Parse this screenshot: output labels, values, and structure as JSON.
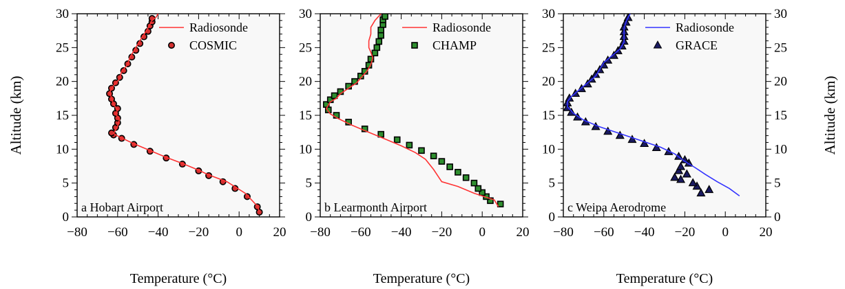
{
  "chart_data": [
    {
      "type": "line",
      "panel_label": "a Hobart Airport",
      "xlabel": "Temperature (°C)",
      "ylabel": "Altitude (km)",
      "xlim": [
        -80,
        20
      ],
      "ylim": [
        0,
        30
      ],
      "x_ticks": [
        -80,
        -60,
        -40,
        -20,
        0,
        20
      ],
      "y_ticks": [
        0,
        5,
        10,
        15,
        20,
        25,
        30
      ],
      "grid": false,
      "legend_position": "top-right",
      "series": [
        {
          "name": "Radiosonde",
          "style": "line",
          "color": "#ff3333",
          "points": [
            [
              10,
              0.8
            ],
            [
              9,
              1.6
            ],
            [
              3,
              3.5
            ],
            [
              -6,
              5.2
            ],
            [
              -15,
              6.2
            ],
            [
              -20,
              6.9
            ],
            [
              -28,
              7.9
            ],
            [
              -36,
              8.8
            ],
            [
              -44,
              9.8
            ],
            [
              -52,
              10.8
            ],
            [
              -59,
              11.8
            ],
            [
              -62,
              12.3
            ],
            [
              -60,
              13.4
            ],
            [
              -59,
              14.4
            ],
            [
              -61,
              15.2
            ],
            [
              -60,
              15.8
            ],
            [
              -62,
              16.6
            ],
            [
              -63,
              17.6
            ],
            [
              -64,
              18.4
            ],
            [
              -62,
              19.4
            ],
            [
              -59,
              20.4
            ],
            [
              -58,
              21.5
            ],
            [
              -55,
              22.5
            ],
            [
              -54,
              23.5
            ],
            [
              -52,
              24.5
            ],
            [
              -50,
              25.5
            ],
            [
              -48,
              26.5
            ],
            [
              -46,
              27.4
            ],
            [
              -44,
              28.4
            ],
            [
              -43,
              29.0
            ],
            [
              -41,
              29.5
            ],
            [
              -40,
              30.0
            ]
          ]
        },
        {
          "name": "COSMIC",
          "style": "markers",
          "marker": "circle",
          "marker_fill": "#d43030",
          "marker_edge": "#000000",
          "points": [
            [
              10,
              0.7
            ],
            [
              9,
              1.5
            ],
            [
              4,
              3.0
            ],
            [
              -2,
              4.2
            ],
            [
              -8,
              5.2
            ],
            [
              -15,
              6.1
            ],
            [
              -20,
              6.8
            ],
            [
              -28,
              7.8
            ],
            [
              -36,
              8.7
            ],
            [
              -44,
              9.7
            ],
            [
              -52,
              10.7
            ],
            [
              -58,
              11.6
            ],
            [
              -62,
              12.1
            ],
            [
              -63,
              12.4
            ],
            [
              -61,
              13.2
            ],
            [
              -60,
              13.9
            ],
            [
              -60,
              14.6
            ],
            [
              -61,
              15.3
            ],
            [
              -60,
              16.0
            ],
            [
              -62,
              16.7
            ],
            [
              -63,
              17.4
            ],
            [
              -64,
              18.2
            ],
            [
              -63,
              19.0
            ],
            [
              -61,
              19.8
            ],
            [
              -59,
              20.6
            ],
            [
              -57,
              21.6
            ],
            [
              -55,
              22.6
            ],
            [
              -53,
              23.6
            ],
            [
              -51,
              24.6
            ],
            [
              -49,
              25.6
            ],
            [
              -47,
              26.6
            ],
            [
              -45,
              27.4
            ],
            [
              -44,
              28.2
            ],
            [
              -43,
              28.8
            ],
            [
              -43,
              29.3
            ]
          ]
        }
      ],
      "x_tick_labels": [
        "−80",
        "−60",
        "−40",
        "−20",
        "0",
        "20"
      ],
      "y_tick_labels": [
        "0",
        "5",
        "10",
        "15",
        "20",
        "25",
        "30"
      ]
    },
    {
      "type": "line",
      "panel_label": "b Learmonth Airport",
      "xlabel": "Temperature (°C)",
      "ylabel": "",
      "xlim": [
        -80,
        20
      ],
      "ylim": [
        0,
        30
      ],
      "x_ticks": [
        -80,
        -60,
        -40,
        -20,
        0,
        20
      ],
      "y_ticks": [
        0,
        5,
        10,
        15,
        20,
        25,
        30
      ],
      "grid": false,
      "legend_position": "top-right",
      "series": [
        {
          "name": "Radiosonde",
          "style": "line",
          "color": "#ff3333",
          "points": [
            [
              8,
              1.5
            ],
            [
              6,
              2.5
            ],
            [
              -4,
              3.5
            ],
            [
              -12,
              4.5
            ],
            [
              -20,
              5.2
            ],
            [
              -24,
              7.0
            ],
            [
              -28,
              8.5
            ],
            [
              -33,
              9.5
            ],
            [
              -40,
              10.5
            ],
            [
              -48,
              11.5
            ],
            [
              -56,
              12.5
            ],
            [
              -64,
              13.5
            ],
            [
              -71,
              14.5
            ],
            [
              -75,
              15.2
            ],
            [
              -77,
              16.0
            ],
            [
              -75,
              17.0
            ],
            [
              -72,
              17.5
            ],
            [
              -70,
              18.2
            ],
            [
              -68,
              18.6
            ],
            [
              -65,
              19.2
            ],
            [
              -62,
              19.8
            ],
            [
              -60,
              20.5
            ],
            [
              -57,
              21.5
            ],
            [
              -55,
              22.5
            ],
            [
              -54,
              23.5
            ],
            [
              -55,
              24.3
            ],
            [
              -56,
              25.0
            ],
            [
              -56,
              26.0
            ],
            [
              -55,
              27.0
            ],
            [
              -55,
              28.0
            ],
            [
              -53,
              29.0
            ],
            [
              -50,
              30.0
            ]
          ]
        },
        {
          "name": "CHAMP",
          "style": "markers",
          "marker": "square",
          "marker_fill": "#2f8f2f",
          "marker_edge": "#000000",
          "points": [
            [
              9,
              1.9
            ],
            [
              4,
              2.4
            ],
            [
              2,
              3.0
            ],
            [
              0,
              3.6
            ],
            [
              -2,
              4.2
            ],
            [
              -4,
              5.0
            ],
            [
              -8,
              5.8
            ],
            [
              -12,
              6.6
            ],
            [
              -16,
              7.4
            ],
            [
              -20,
              8.2
            ],
            [
              -24,
              9.0
            ],
            [
              -30,
              9.8
            ],
            [
              -36,
              10.6
            ],
            [
              -42,
              11.4
            ],
            [
              -50,
              12.2
            ],
            [
              -58,
              13.0
            ],
            [
              -66,
              14.0
            ],
            [
              -72,
              15.0
            ],
            [
              -76,
              15.8
            ],
            [
              -77,
              16.6
            ],
            [
              -75,
              17.3
            ],
            [
              -73,
              17.9
            ],
            [
              -70,
              18.5
            ],
            [
              -66,
              19.3
            ],
            [
              -63,
              20.0
            ],
            [
              -60,
              20.8
            ],
            [
              -58,
              21.5
            ],
            [
              -56,
              22.4
            ],
            [
              -55,
              23.3
            ],
            [
              -53,
              24.2
            ],
            [
              -52,
              25.0
            ],
            [
              -51,
              25.9
            ],
            [
              -50,
              26.8
            ],
            [
              -50,
              27.6
            ],
            [
              -49,
              28.4
            ],
            [
              -49,
              29.1
            ],
            [
              -48,
              29.6
            ]
          ]
        }
      ],
      "x_tick_labels": [
        "−80",
        "−60",
        "−40",
        "−20",
        "0",
        "20"
      ],
      "y_tick_labels": [
        "0",
        "5",
        "10",
        "15",
        "20",
        "25",
        "30"
      ]
    },
    {
      "type": "line",
      "panel_label": "c Weipa Aerodrome",
      "xlabel": "Temperature (°C)",
      "ylabel": "Altitude (km)",
      "xlim": [
        -80,
        20
      ],
      "ylim": [
        0,
        30
      ],
      "x_ticks": [
        -80,
        -60,
        -40,
        -20,
        0,
        20
      ],
      "y_ticks": [
        0,
        5,
        10,
        15,
        20,
        25,
        30
      ],
      "grid": false,
      "legend_position": "top-right",
      "series": [
        {
          "name": "Radiosonde",
          "style": "line",
          "color": "#3333ff",
          "points": [
            [
              7,
              3.1
            ],
            [
              2,
              4.2
            ],
            [
              -4,
              5.2
            ],
            [
              -10,
              6.3
            ],
            [
              -15,
              7.3
            ],
            [
              -20,
              8.2
            ],
            [
              -25,
              9.3
            ],
            [
              -32,
              10.3
            ],
            [
              -42,
              11.3
            ],
            [
              -52,
              12.3
            ],
            [
              -62,
              13.3
            ],
            [
              -70,
              14.3
            ],
            [
              -75,
              15.3
            ],
            [
              -78,
              16.3
            ],
            [
              -78,
              17.0
            ],
            [
              -76,
              17.8
            ],
            [
              -72,
              18.8
            ],
            [
              -68,
              19.8
            ],
            [
              -64,
              20.8
            ],
            [
              -62,
              21.8
            ],
            [
              -60,
              22.8
            ],
            [
              -56,
              23.8
            ],
            [
              -52,
              24.8
            ],
            [
              -50,
              25.8
            ],
            [
              -50,
              26.8
            ],
            [
              -50,
              27.8
            ],
            [
              -49,
              28.8
            ],
            [
              -47,
              30.0
            ]
          ]
        },
        {
          "name": "GRACE",
          "style": "markers",
          "marker": "triangle",
          "marker_fill": "#1a1a60",
          "marker_edge": "#000000",
          "points": [
            [
              -12,
              3.5
            ],
            [
              -8,
              4.0
            ],
            [
              -14,
              4.5
            ],
            [
              -16,
              5.0
            ],
            [
              -22,
              5.5
            ],
            [
              -25,
              5.8
            ],
            [
              -19,
              6.3
            ],
            [
              -23,
              6.8
            ],
            [
              -22,
              7.4
            ],
            [
              -18,
              7.9
            ],
            [
              -20,
              8.4
            ],
            [
              -23,
              8.9
            ],
            [
              -28,
              9.6
            ],
            [
              -34,
              10.2
            ],
            [
              -40,
              10.8
            ],
            [
              -46,
              11.4
            ],
            [
              -52,
              12.0
            ],
            [
              -58,
              12.6
            ],
            [
              -64,
              13.3
            ],
            [
              -69,
              14.0
            ],
            [
              -73,
              14.7
            ],
            [
              -76,
              15.4
            ],
            [
              -78,
              16.1
            ],
            [
              -78,
              16.8
            ],
            [
              -77,
              17.5
            ],
            [
              -74,
              18.2
            ],
            [
              -71,
              18.9
            ],
            [
              -68,
              19.6
            ],
            [
              -66,
              20.3
            ],
            [
              -64,
              21.0
            ],
            [
              -62,
              21.7
            ],
            [
              -60,
              22.4
            ],
            [
              -58,
              23.1
            ],
            [
              -55,
              23.8
            ],
            [
              -53,
              24.5
            ],
            [
              -51,
              25.2
            ],
            [
              -50,
              25.9
            ],
            [
              -50,
              26.6
            ],
            [
              -50,
              27.3
            ],
            [
              -50,
              28.0
            ],
            [
              -49,
              28.7
            ],
            [
              -48,
              29.4
            ]
          ]
        }
      ],
      "x_tick_labels": [
        "−80",
        "−60",
        "−40",
        "−20",
        "0",
        "20"
      ],
      "y_tick_labels": [
        "0",
        "5",
        "10",
        "15",
        "20",
        "25",
        "30"
      ]
    }
  ],
  "colors": {
    "plot_background": "#f8f8f8",
    "axis": "#000000"
  }
}
